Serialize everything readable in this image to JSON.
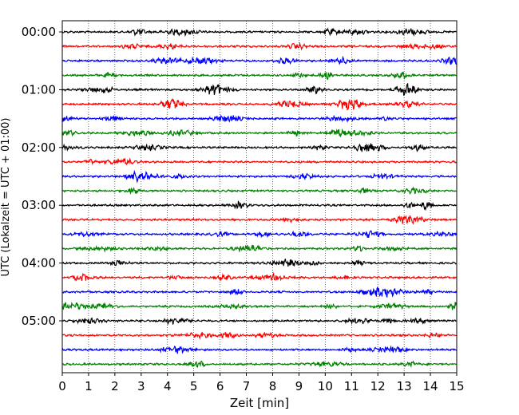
{
  "chart_data": {
    "type": "line",
    "title": "",
    "xlabel": "Zeit  [min]",
    "ylabel": "UTC (Lokalzeit = UTC + 01:00)",
    "xlim": [
      0,
      15
    ],
    "x_ticks": [
      "0",
      "1",
      "2",
      "3",
      "4",
      "5",
      "6",
      "7",
      "8",
      "9",
      "10",
      "11",
      "12",
      "13",
      "14",
      "15"
    ],
    "y_tick_labels": [
      "00:00",
      "01:00",
      "02:00",
      "03:00",
      "04:00",
      "05:00"
    ],
    "traces_per_hour": 4,
    "trace_count": 24,
    "trace_colors": [
      "#000000",
      "#ff0000",
      "#0000ff",
      "#008000"
    ],
    "grid": {
      "x": true,
      "style": "dotted"
    },
    "legend": "none"
  }
}
